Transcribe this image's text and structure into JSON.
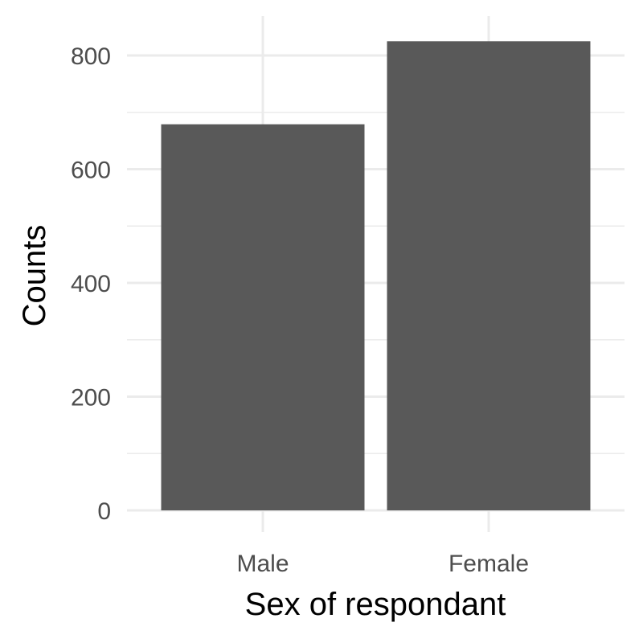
{
  "chart_data": {
    "type": "bar",
    "categories": [
      "Male",
      "Female"
    ],
    "values": [
      679,
      825
    ],
    "xlabel": "Sex of respondant",
    "ylabel": "Counts",
    "ylim": [
      0,
      870
    ],
    "yticks": [
      0,
      200,
      400,
      600,
      800
    ],
    "yticks_minor": [
      100,
      300,
      500,
      700
    ],
    "grid": true,
    "legend": "none",
    "colors": {
      "bar": "#595959",
      "grid": "#ebebeb",
      "tick_text": "#4d4d4d",
      "title_text": "#000000",
      "background": "#ffffff"
    }
  }
}
